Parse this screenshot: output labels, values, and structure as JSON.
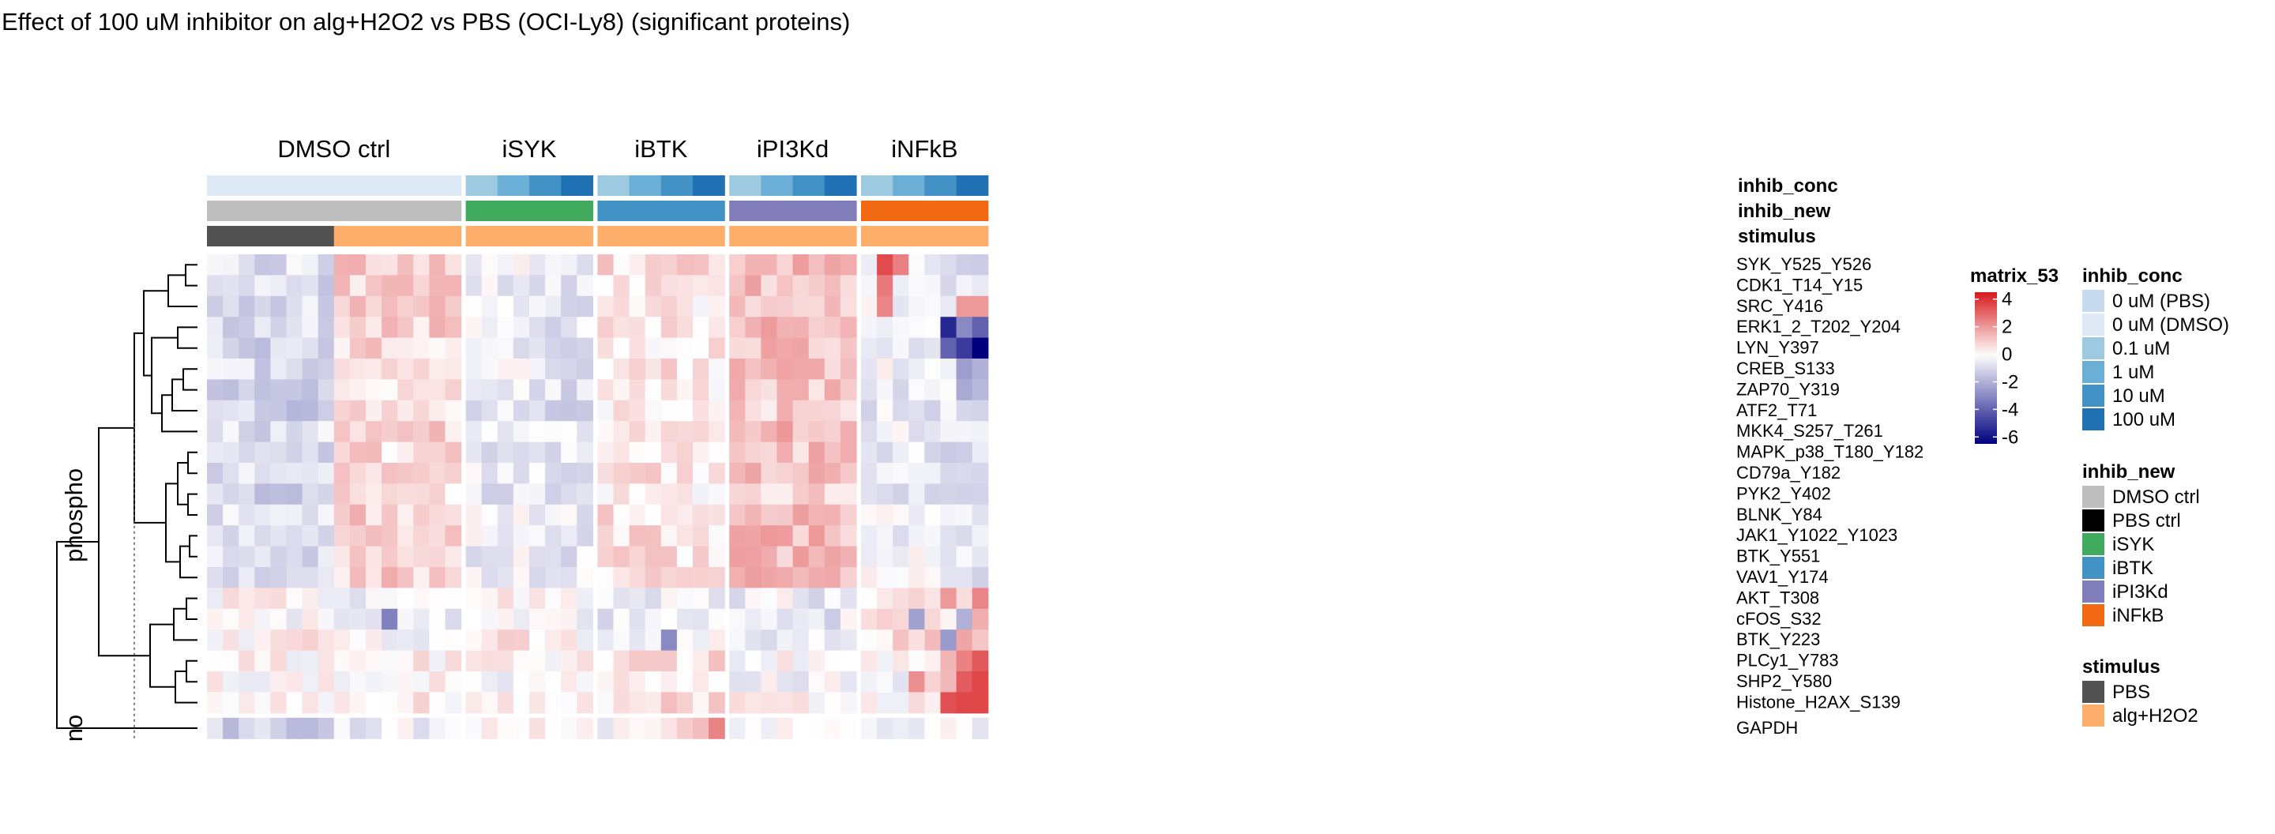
{
  "chart_data": {
    "type": "heatmap",
    "title": "Effect of 100 uM inhibitor on alg+H2O2 vs PBS (OCI-Ly8) (significant proteins)",
    "column_groups": [
      {
        "name": "DMSO ctrl",
        "n": 16
      },
      {
        "name": "iSYK",
        "n": 8
      },
      {
        "name": "iBTK",
        "n": 8
      },
      {
        "name": "iPI3Kd",
        "n": 8
      },
      {
        "name": "iNFkB",
        "n": 8
      }
    ],
    "row_split_labels": [
      "phospho",
      "no"
    ],
    "rows": [
      "SYK_Y525_Y526",
      "CDK1_T14_Y15",
      "SRC_Y416",
      "ERK1_2_T202_Y204",
      "LYN_Y397",
      "CREB_S133",
      "ZAP70_Y319",
      "ATF2_T71",
      "MKK4_S257_T261",
      "MAPK_p38_T180_Y182",
      "CD79a_Y182",
      "PYK2_Y402",
      "BLNK_Y84",
      "JAK1_Y1022_Y1023",
      "BTK_Y551",
      "VAV1_Y174",
      "AKT_T308",
      "cFOS_S32",
      "BTK_Y223",
      "PLCy1_Y783",
      "SHP2_Y580",
      "Histone_H2AX_S139",
      "GAPDH"
    ],
    "row_blocks": {
      "A": [
        0,
        1,
        2,
        3,
        4,
        5,
        6,
        7,
        8,
        9,
        10,
        11,
        12,
        13,
        14,
        15
      ],
      "B": [
        16,
        17,
        18
      ],
      "C": [
        19,
        20,
        21
      ],
      "D": [
        22
      ]
    },
    "block_means": {
      "A": [
        -1.0,
        -1.0,
        -1.0,
        -1.0,
        -1.0,
        -1.0,
        -1.0,
        -1.0,
        0.8,
        0.8,
        0.8,
        0.8,
        0.8,
        0.8,
        0.8,
        0.8,
        -0.5,
        -0.5,
        -0.5,
        -0.5,
        -0.7,
        -0.7,
        -0.7,
        -0.7,
        0.5,
        0.5,
        0.5,
        0.5,
        0.4,
        0.4,
        0.3,
        0.3,
        1.2,
        1.2,
        1.2,
        1.2,
        1.2,
        1.2,
        1.2,
        1.2,
        -0.4,
        -0.4,
        -0.4,
        -0.4,
        -0.5,
        -0.6,
        -0.8,
        -0.9
      ],
      "B": [
        0.2,
        0.3,
        0.1,
        0.3,
        0.2,
        0.1,
        0.3,
        0.1,
        -0.4,
        -0.2,
        -0.3,
        -0.5,
        -0.3,
        -0.4,
        -0.2,
        -0.3,
        0.3,
        0.2,
        0.4,
        0.3,
        0.4,
        0.2,
        0.3,
        0.1,
        -0.3,
        -0.2,
        -0.4,
        -0.5,
        -0.3,
        -0.2,
        -0.4,
        -0.1,
        -0.4,
        -0.3,
        -0.5,
        -0.2,
        -0.3,
        -0.6,
        -0.4,
        -0.2,
        0.4,
        0.5,
        0.6,
        0.5,
        0.7,
        0.9,
        1.1,
        1.3
      ],
      "C": [
        0.0,
        0.1,
        -0.1,
        0.0,
        0.1,
        0.0,
        -0.1,
        0.0,
        0.0,
        0.1,
        0.2,
        0.1,
        0.0,
        0.2,
        0.1,
        0.0,
        -0.2,
        -0.1,
        0.0,
        -0.2,
        -0.1,
        0.0,
        -0.1,
        0.0,
        0.4,
        0.2,
        0.5,
        0.6,
        0.8,
        0.5,
        0.7,
        0.6,
        -0.1,
        0.0,
        -0.2,
        0.0,
        -0.1,
        0.1,
        0.0,
        -0.1,
        -0.2,
        -0.1,
        0.0,
        0.2,
        0.5,
        1.0,
        2.2,
        2.8
      ],
      "D": [
        -1.1,
        -1.1,
        -1.1,
        -1.1,
        -1.1,
        -1.0,
        -1.0,
        -1.0,
        -0.2,
        -0.2,
        -0.1,
        -0.1,
        -0.2,
        -0.1,
        -0.2,
        -0.1,
        0.1,
        0.2,
        0.3,
        0.2,
        0.4,
        0.5,
        0.6,
        0.4,
        0.1,
        0.2,
        0.3,
        0.4,
        1.0,
        1.5,
        2.2,
        2.6,
        0.2,
        0.3,
        0.1,
        0.2,
        0.3,
        0.5,
        0.4,
        0.3,
        0.0,
        0.1,
        0.0,
        0.1,
        0.2,
        0.1,
        0.0,
        0.1
      ]
    },
    "overrides": [
      {
        "r": 0,
        "c": 41,
        "v": 3.5
      },
      {
        "r": 0,
        "c": 42,
        "v": 2.5
      },
      {
        "r": 1,
        "c": 41,
        "v": 2.6
      },
      {
        "r": 2,
        "c": 41,
        "v": 2.4
      },
      {
        "r": 2,
        "c": 46,
        "v": 2.0
      },
      {
        "r": 2,
        "c": 47,
        "v": 2.0
      },
      {
        "r": 3,
        "c": 45,
        "v": -5.5
      },
      {
        "r": 3,
        "c": 46,
        "v": -3.0
      },
      {
        "r": 3,
        "c": 47,
        "v": -4.0
      },
      {
        "r": 4,
        "c": 45,
        "v": -4.0
      },
      {
        "r": 4,
        "c": 46,
        "v": -5.0
      },
      {
        "r": 4,
        "c": 47,
        "v": -6.5
      },
      {
        "r": 5,
        "c": 46,
        "v": -2.5
      },
      {
        "r": 5,
        "c": 47,
        "v": -2.0
      },
      {
        "r": 6,
        "c": 46,
        "v": -2.2
      },
      {
        "r": 6,
        "c": 47,
        "v": -1.8
      },
      {
        "r": 17,
        "c": 11,
        "v": -3.2
      },
      {
        "r": 18,
        "c": 28,
        "v": -3.0
      },
      {
        "r": 17,
        "c": 43,
        "v": -2.4
      },
      {
        "r": 17,
        "c": 46,
        "v": -2.0
      },
      {
        "r": 18,
        "c": 45,
        "v": -2.6
      },
      {
        "r": 16,
        "c": 45,
        "v": 2.0
      },
      {
        "r": 16,
        "c": 47,
        "v": 2.4
      },
      {
        "r": 20,
        "c": 46,
        "v": 3.2
      },
      {
        "r": 20,
        "c": 47,
        "v": 3.6
      },
      {
        "r": 21,
        "c": 45,
        "v": 3.4
      },
      {
        "r": 21,
        "c": 46,
        "v": 3.6
      },
      {
        "r": 21,
        "c": 47,
        "v": 3.6
      },
      {
        "r": 20,
        "c": 43,
        "v": 2.2
      }
    ],
    "annotations": [
      {
        "name": "inhib_conc",
        "levels": [
          {
            "label": "0 uM (PBS)",
            "color": "#c6dbef"
          },
          {
            "label": "0 uM (DMSO)",
            "color": "#deebf7"
          },
          {
            "label": "0.1 uM",
            "color": "#9ecae1"
          },
          {
            "label": "1 uM",
            "color": "#6baed6"
          },
          {
            "label": "10 uM",
            "color": "#4292c6"
          },
          {
            "label": "100 uM",
            "color": "#2171b5"
          }
        ],
        "values": [
          1,
          1,
          1,
          1,
          1,
          1,
          1,
          1,
          1,
          1,
          1,
          1,
          1,
          1,
          1,
          1,
          2,
          2,
          3,
          3,
          4,
          4,
          5,
          5,
          2,
          2,
          3,
          3,
          4,
          4,
          5,
          5,
          2,
          2,
          3,
          3,
          4,
          4,
          5,
          5,
          2,
          2,
          3,
          3,
          4,
          4,
          5,
          5
        ]
      },
      {
        "name": "inhib_new",
        "levels": [
          {
            "label": "DMSO ctrl",
            "color": "#bebebe"
          },
          {
            "label": "PBS ctrl",
            "color": "#000000"
          },
          {
            "label": "iSYK",
            "color": "#41ab5d"
          },
          {
            "label": "iBTK",
            "color": "#4292c6"
          },
          {
            "label": "iPI3Kd",
            "color": "#807dba"
          },
          {
            "label": "iNFkB",
            "color": "#f16913"
          }
        ],
        "values": [
          0,
          0,
          0,
          0,
          0,
          0,
          0,
          0,
          0,
          0,
          0,
          0,
          0,
          0,
          0,
          0,
          2,
          2,
          2,
          2,
          2,
          2,
          2,
          2,
          3,
          3,
          3,
          3,
          3,
          3,
          3,
          3,
          4,
          4,
          4,
          4,
          4,
          4,
          4,
          4,
          5,
          5,
          5,
          5,
          5,
          5,
          5,
          5
        ]
      },
      {
        "name": "stimulus",
        "levels": [
          {
            "label": "PBS",
            "color": "#525252"
          },
          {
            "label": "alg+H2O2",
            "color": "#fdae6b"
          }
        ],
        "values": [
          0,
          0,
          0,
          0,
          0,
          0,
          0,
          0,
          1,
          1,
          1,
          1,
          1,
          1,
          1,
          1,
          1,
          1,
          1,
          1,
          1,
          1,
          1,
          1,
          1,
          1,
          1,
          1,
          1,
          1,
          1,
          1,
          1,
          1,
          1,
          1,
          1,
          1,
          1,
          1,
          1,
          1,
          1,
          1,
          1,
          1,
          1,
          1
        ]
      }
    ],
    "color_scale": {
      "name": "matrix_53",
      "ticks": [
        "4",
        "2",
        "0",
        "-2",
        "-4",
        "-6"
      ],
      "tick_values": [
        4,
        2,
        0,
        -2,
        -4,
        -6
      ],
      "range": [
        -6.5,
        4.5
      ],
      "low_color": "#00007f",
      "mid_color": "#ffffff",
      "high_color": "#d7191c"
    }
  }
}
